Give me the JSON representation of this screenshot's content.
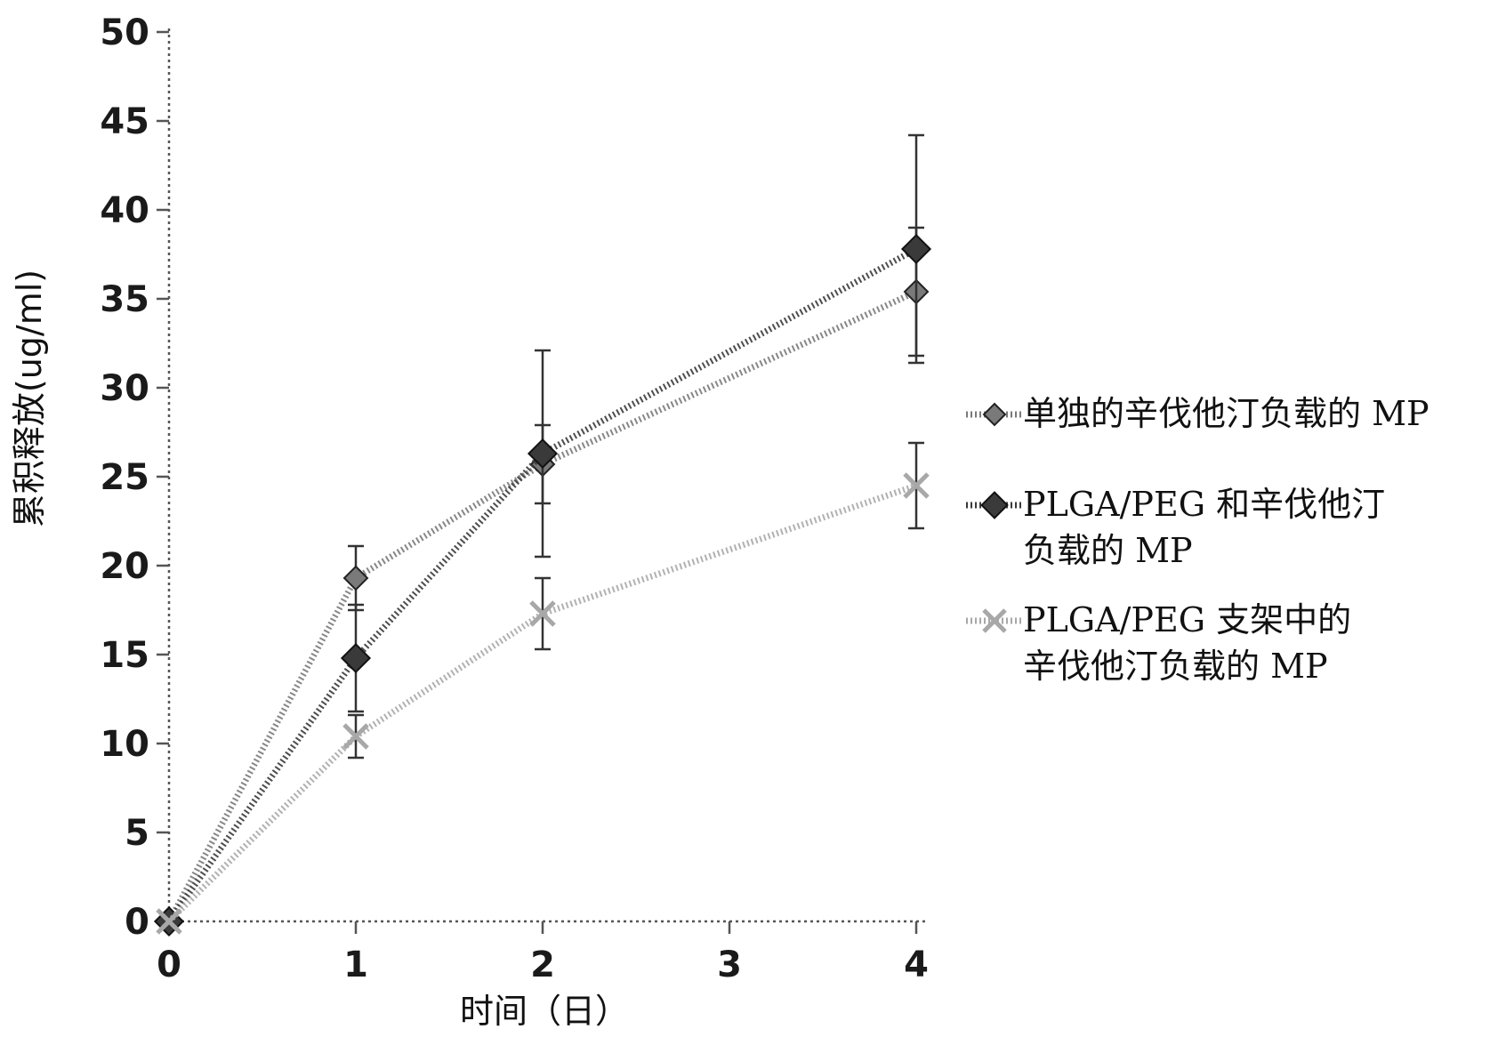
{
  "chart_data": {
    "type": "line",
    "xlabel": "时间（日）",
    "ylabel": "累积释放(ug/ml)",
    "xlim": [
      0,
      4
    ],
    "ylim": [
      0,
      50
    ],
    "x_ticks": [
      "0",
      "1",
      "2",
      "3",
      "4"
    ],
    "y_ticks": [
      "0",
      "5",
      "10",
      "15",
      "20",
      "25",
      "30",
      "35",
      "40",
      "45",
      "50"
    ],
    "grid": false,
    "legend_position": "right",
    "x": [
      0,
      1,
      2,
      4
    ],
    "series": [
      {
        "name": "单独的辛伐他汀负载的MP",
        "legend_lines": [
          "单独的辛伐他汀负载的 MP"
        ],
        "marker": "diamond",
        "color": "#7a7a7a",
        "values": [
          0,
          19.3,
          25.7,
          35.4
        ],
        "error": [
          0,
          1.8,
          2.2,
          3.6
        ]
      },
      {
        "name": "PLGA/PEG 和辛伐他汀负载的 MP",
        "legend_lines": [
          "PLGA/PEG 和辛伐他汀",
          "负载的 MP"
        ],
        "marker": "square",
        "color": "#3a3a3a",
        "values": [
          0,
          14.8,
          26.3,
          37.8
        ],
        "error": [
          0,
          3.0,
          5.8,
          6.4
        ]
      },
      {
        "name": "PLGA/PEG 支架中的辛伐他汀负载的 MP",
        "legend_lines": [
          "PLGA/PEG 支架中的",
          "辛伐他汀负载的 MP"
        ],
        "marker": "x",
        "color": "#a8a8a8",
        "values": [
          0,
          10.4,
          17.3,
          24.5
        ],
        "error": [
          0,
          1.2,
          2.0,
          2.4
        ]
      }
    ]
  }
}
